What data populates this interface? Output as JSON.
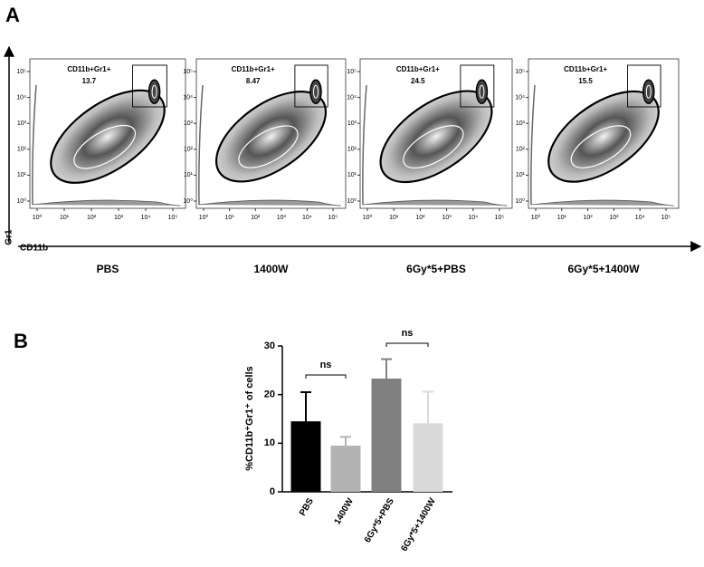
{
  "panel_a": {
    "label": "A",
    "y_axis_label": "Gr1",
    "x_axis_label": "CD11b",
    "ticks": [
      {
        "value": 1,
        "label": "10⁰"
      },
      {
        "value": 10,
        "label": "10¹"
      },
      {
        "value": 100,
        "label": "10²"
      },
      {
        "value": 1000,
        "label": "10³"
      },
      {
        "value": 10000,
        "label": "10⁴"
      },
      {
        "value": 100000,
        "label": "10⁵"
      }
    ],
    "plots": [
      {
        "condition": "PBS",
        "gate_label": "CD11b+Gr1+",
        "gate_value": 13.7
      },
      {
        "condition": "1400W",
        "gate_label": "CD11b+Gr1+",
        "gate_value": 8.47
      },
      {
        "condition": "6Gy*5+PBS",
        "gate_label": "CD11b+Gr1+",
        "gate_value": 24.5
      },
      {
        "condition": "6Gy*5+1400W",
        "gate_label": "CD11b+Gr1+",
        "gate_value": 15.5
      }
    ]
  },
  "chart_data": {
    "type": "bar",
    "panel_label": "B",
    "y_label": "%CD11b⁺Gr1⁺ of cells",
    "categories": [
      "PBS",
      "1400W",
      "6Gy*5+PBS",
      "6Gy*5+1400W"
    ],
    "values": [
      14.5,
      9.5,
      23.3,
      14.1
    ],
    "errors": [
      6,
      1.8,
      4,
      6.5
    ],
    "colors": [
      "#000000",
      "#b3b3b3",
      "#808080",
      "#d9d9d9"
    ],
    "ylim": [
      0,
      30
    ],
    "yticks": [
      0,
      10,
      20,
      30
    ],
    "annotations": [
      "ns",
      "ns"
    ]
  }
}
